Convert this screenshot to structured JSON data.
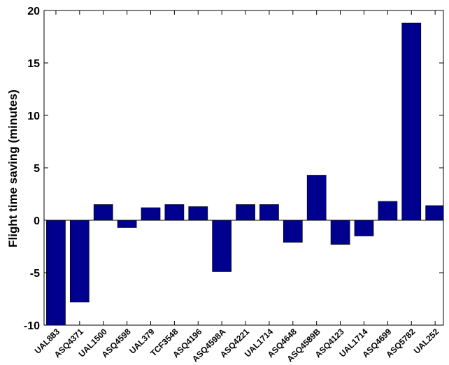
{
  "chart_data": {
    "type": "bar",
    "title": "",
    "xlabel": "",
    "ylabel": "Flight time saving (minutes)",
    "categories": [
      "UAL883",
      "ASQ4371",
      "UAL1500",
      "ASQ4598",
      "UAL379",
      "TCF3548",
      "ASQ4196",
      "ASQ4598A",
      "ASQ4221",
      "UAL1714",
      "ASQ4648",
      "ASQ4589B",
      "ASQ4123",
      "UAL1714",
      "ASQ4699",
      "ASQ5782",
      "UAL252"
    ],
    "values": [
      -10,
      -7.8,
      1.5,
      -0.7,
      1.2,
      1.5,
      1.3,
      -4.9,
      1.5,
      1.5,
      -2.1,
      4.3,
      -2.3,
      -1.5,
      1.8,
      18.8,
      1.4
    ],
    "ylim": [
      -10,
      20
    ],
    "yticks": [
      "-10",
      "-5",
      "0",
      "5",
      "10",
      "15",
      "20"
    ],
    "grid": false,
    "legend": "none",
    "bar_color": "#00008f"
  }
}
